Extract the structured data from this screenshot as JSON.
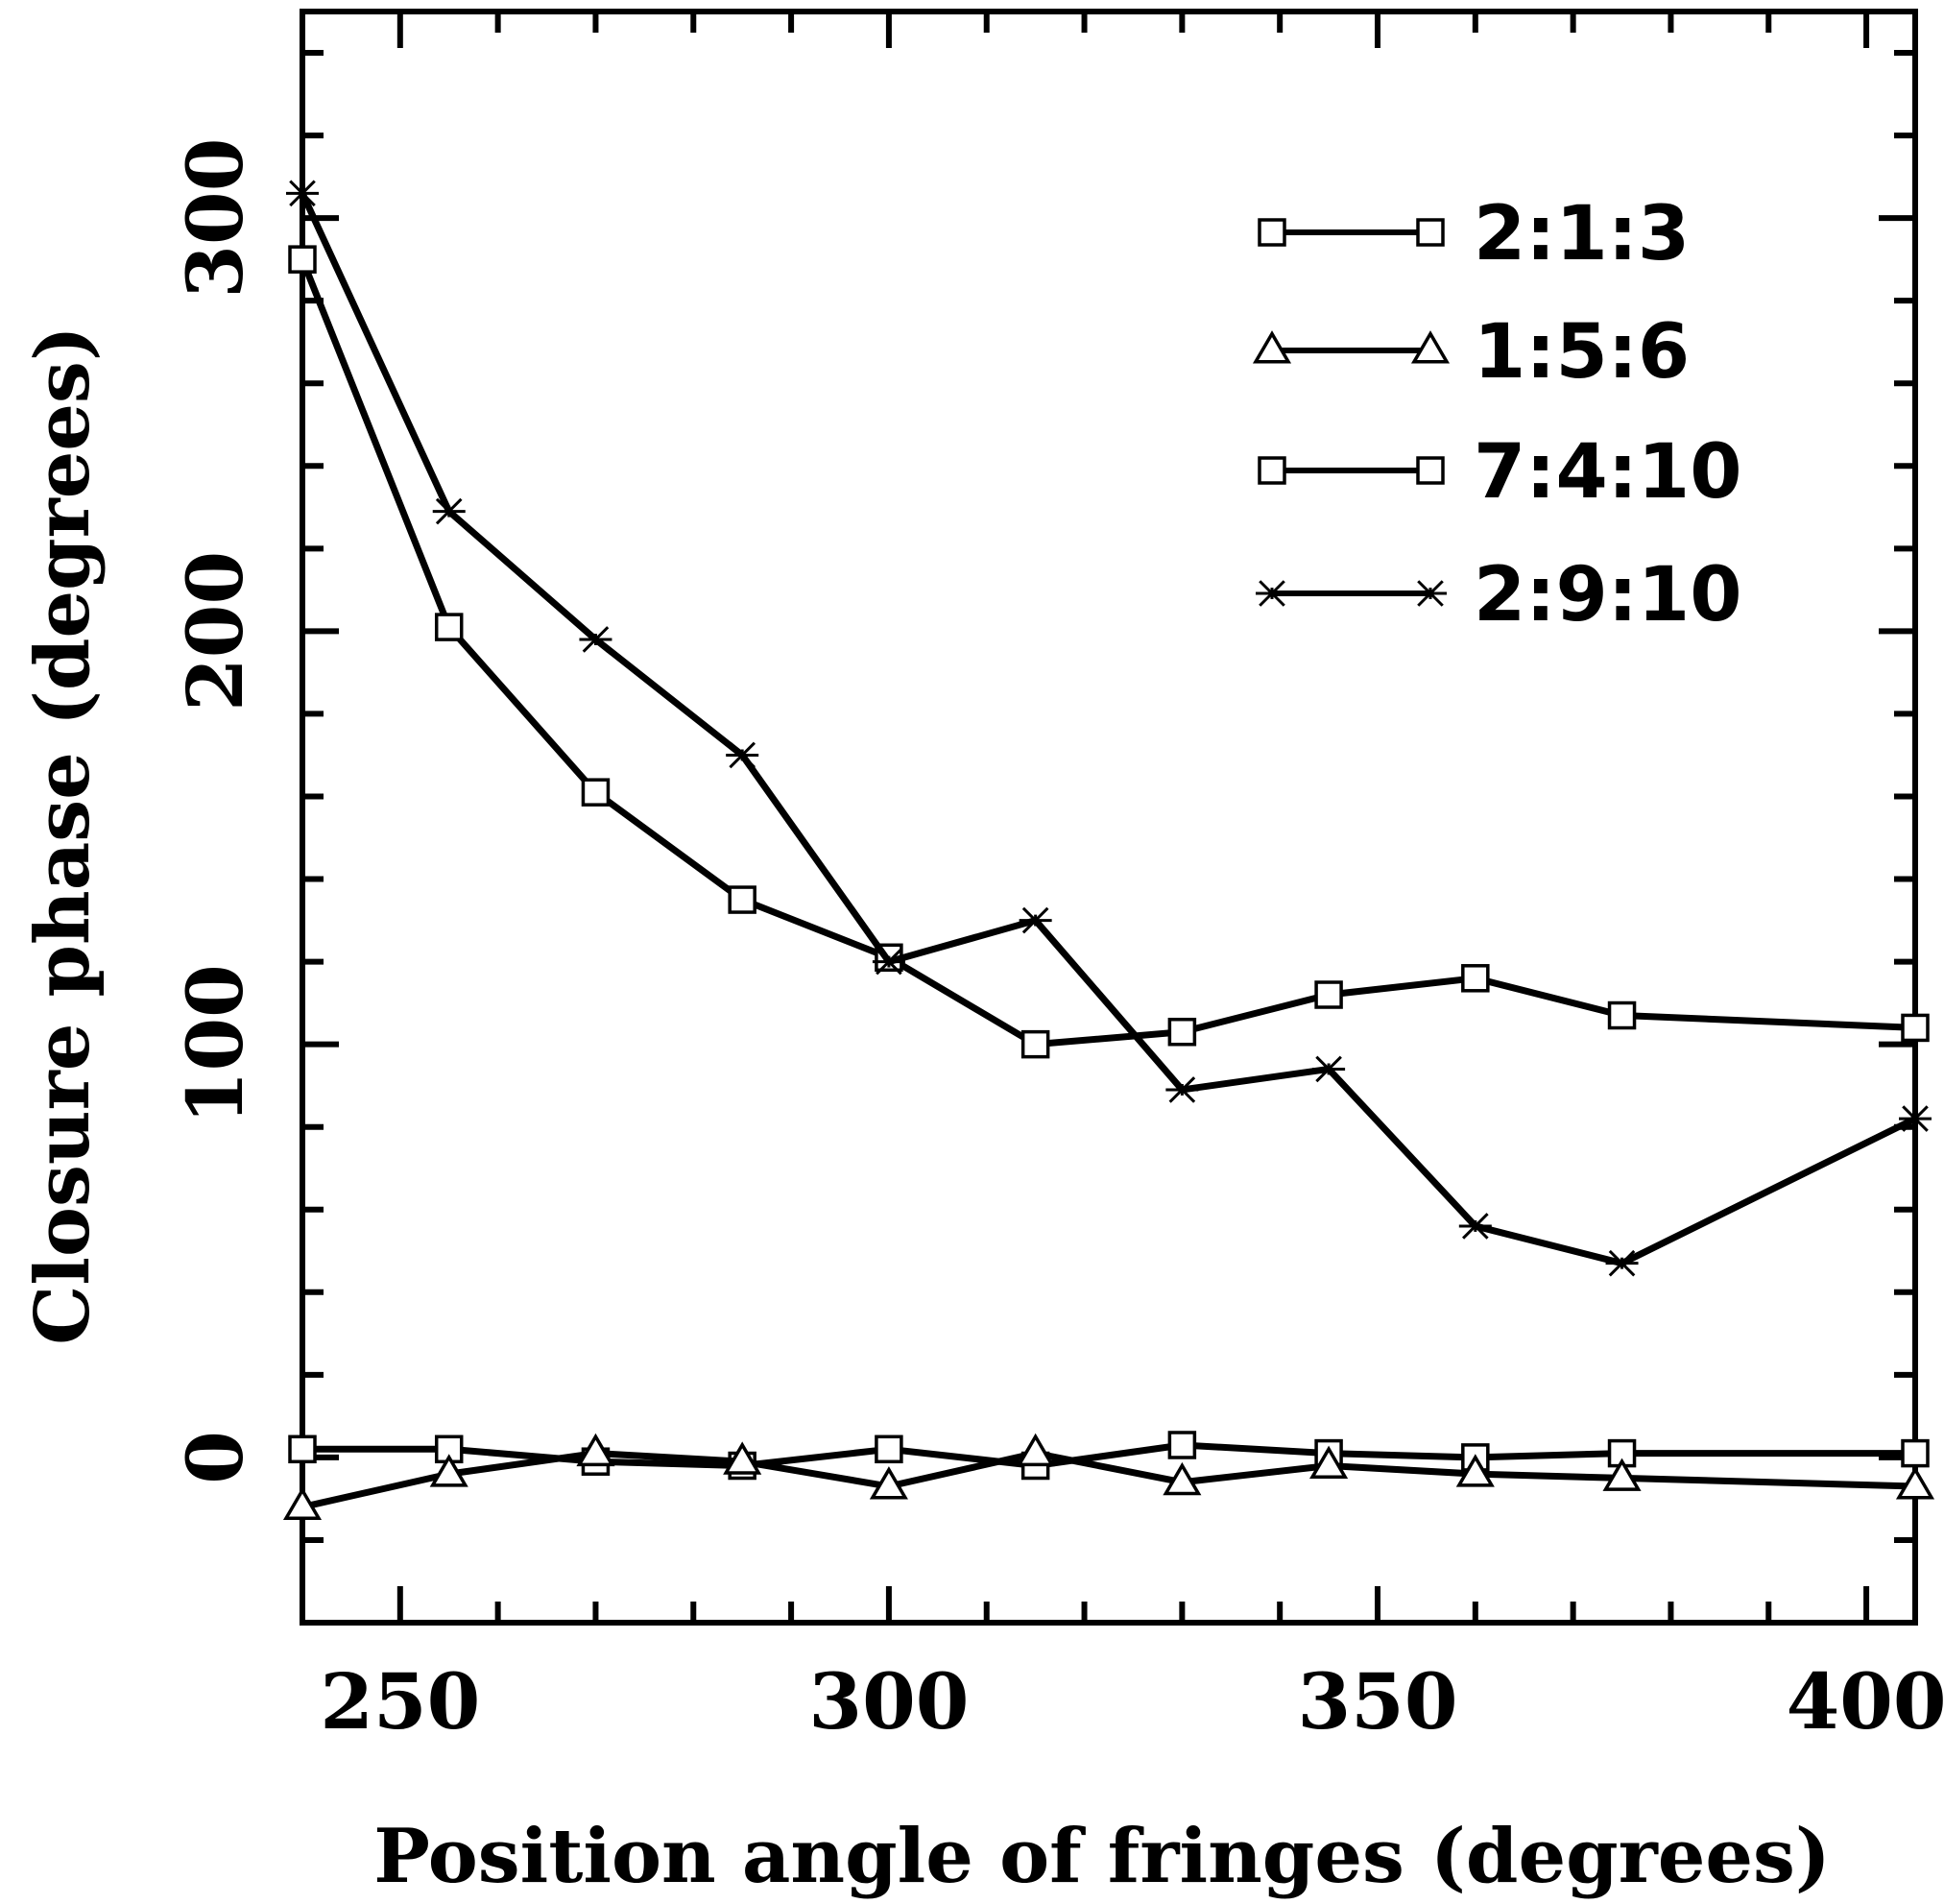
{
  "chart_data": {
    "type": "line",
    "title": "",
    "xlabel": "Position angle of fringes (degrees)",
    "ylabel": "Closure phase (degrees)",
    "xlim": [
      240,
      405
    ],
    "ylim": [
      -40,
      350
    ],
    "x_ticks": [
      250,
      300,
      350,
      400
    ],
    "x_tick_labels": [
      "250",
      "300",
      "350",
      "400"
    ],
    "y_ticks": [
      0,
      100,
      200,
      300
    ],
    "y_tick_labels": [
      "0",
      "100",
      "200",
      "300"
    ],
    "grid": false,
    "legend_position": "top-right",
    "x": [
      240,
      255,
      270,
      285,
      300,
      315,
      330,
      345,
      360,
      375,
      405
    ],
    "series": [
      {
        "name": "2:1:3",
        "marker": "square",
        "values": [
          2,
          2,
          -1,
          -2,
          2,
          -2,
          3,
          1,
          0,
          1,
          1
        ]
      },
      {
        "name": "1:5:6",
        "marker": "triangle",
        "values": [
          -12,
          -4,
          1,
          -1,
          -7,
          1,
          -6,
          -2,
          -4,
          -5,
          -7
        ]
      },
      {
        "name": "7:4:10",
        "marker": "square",
        "values": [
          290,
          201,
          161,
          135,
          121,
          100,
          103,
          112,
          116,
          107,
          104
        ]
      },
      {
        "name": "2:9:10",
        "marker": "asterisk",
        "values": [
          306,
          229,
          198,
          170,
          120,
          130,
          89,
          94,
          56,
          47,
          82
        ]
      }
    ]
  }
}
